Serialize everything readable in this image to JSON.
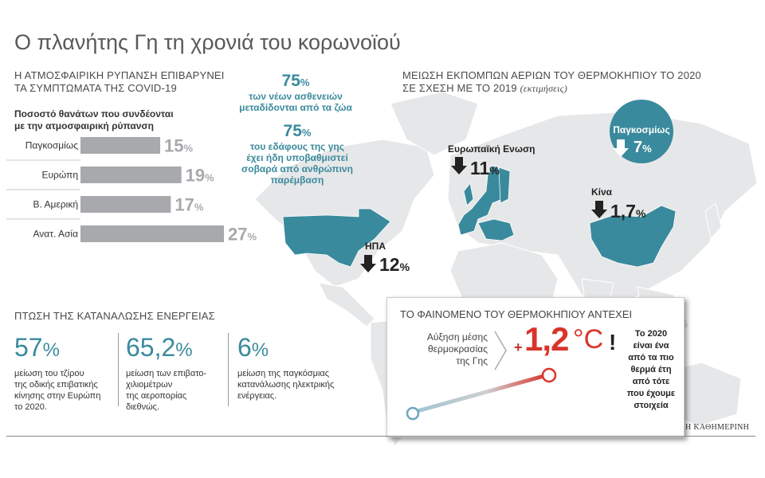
{
  "title": "Ο πλανήτης Γη τη χρονιά του κορωνοϊού",
  "air_pollution": {
    "title_line1": "Η ΑΤΜΟΣΦΑΙΡΙΚΗ ΡΥΠΑΝΣΗ ΕΠΙΒΑΡΥΝΕΙ",
    "title_line2": "ΤΑ ΣΥΜΠΤΩΜΑΤΑ ΤΗΣ COVID-19",
    "subtitle_line1": "Ποσοστό θανάτων που συνδέονται",
    "subtitle_line2": "με την ατμοσφαιρική ρύπανση"
  },
  "chart_data": {
    "type": "bar",
    "orientation": "horizontal",
    "title": "Ποσοστό θανάτων που συνδέονται με την ατμοσφαιρική ρύπανση",
    "categories": [
      "Παγκοσμίως",
      "Ευρώπη",
      "Β. Αμερική",
      "Ανατ. Ασία"
    ],
    "values": [
      15,
      19,
      17,
      27
    ],
    "unit": "%",
    "xlim": [
      0,
      27
    ],
    "bar_color": "#a7a9ac",
    "label_color": "#a7a9ac"
  },
  "stats_75": [
    {
      "value": "75",
      "unit": "%",
      "lines": [
        "των νέων ασθενειών",
        "μεταδίδονται από τα ζώα"
      ]
    },
    {
      "value": "75",
      "unit": "%",
      "lines": [
        "του εδάφους της γης",
        "έχει ήδη υποβαθμιστεί",
        "σοβαρά από ανθρώπινη",
        "παρέμβαση"
      ]
    }
  ],
  "emissions": {
    "title_line1": "ΜΕΙΩΣΗ ΕΚΠΟΜΠΩΝ ΑΕΡΙΩΝ ΤΟΥ ΘΕΡΜΟΚΗΠΙΟΥ ΤΟ 2020",
    "title_line2": "ΣΕ ΣΧΕΣΗ ΜΕ ΤΟ 2019",
    "note": "(εκτιμήσεις)",
    "global": {
      "label": "Παγκοσμίως",
      "value": "7",
      "unit": "%"
    },
    "eu": {
      "label": "Ευρωπαϊκή Ενωση",
      "value": "11",
      "unit": "%"
    },
    "china": {
      "label": "Κίνα",
      "value": "1,7",
      "unit": "%"
    },
    "usa": {
      "label": "ΗΠΑ",
      "value": "12",
      "unit": "%"
    }
  },
  "energy": {
    "title": "ΠΤΩΣΗ ΤΗΣ ΚΑΤΑΝΑΛΩΣΗΣ ΕΝΕΡΓΕΙΑΣ",
    "items": [
      {
        "value": "57",
        "unit": "%",
        "lines": [
          "μείωση του τζίρου",
          "της οδικής επιβατικής",
          "κίνησης στην Ευρώπη",
          "το 2020."
        ]
      },
      {
        "value": "65,2",
        "unit": "%",
        "lines": [
          "μείωση των επιβατο-",
          "χιλιομέτρων",
          "της αεροπορίας",
          "διεθνώς."
        ]
      },
      {
        "value": "6",
        "unit": "%",
        "lines": [
          "μείωση της παγκόσμιας",
          "κατανάλωσης ηλεκτρικής",
          "ενέργειας."
        ]
      }
    ]
  },
  "greenhouse": {
    "title": "ΤΟ ΦΑΙΝΟΜΕΝΟ ΤΟΥ ΘΕΡΜΟΚΗΠΙΟΥ ΑΝΤΕΧΕΙ",
    "temp_label_lines": [
      "Αύξηση μέσης",
      "θερμοκρασίας",
      "της Γης"
    ],
    "sign": "+",
    "value": "1,2",
    "unit": "°C",
    "exclaim": "!",
    "note_lines": [
      "Το 2020",
      "είναι ένα",
      "από τα πιο",
      "θερμά έτη",
      "από τότε",
      "που έχουμε",
      "στοιχεία"
    ]
  },
  "footer": {
    "logo": "Η ΚΑΘΗΜΕΡΙΝΗ"
  },
  "colors": {
    "teal": "#3a8a9d",
    "map_gray": "#e6e7e8",
    "bar_gray": "#a7a9ac",
    "red": "#d9342b"
  }
}
